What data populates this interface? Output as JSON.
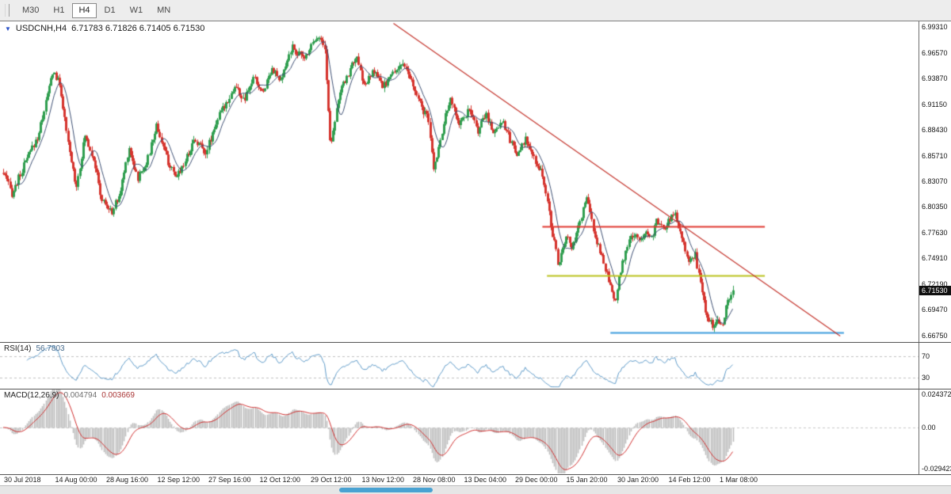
{
  "toolbar": {
    "timeframes": [
      "M30",
      "H1",
      "H4",
      "D1",
      "W1",
      "MN"
    ],
    "active": "H4"
  },
  "chart_data": {
    "type": "candlestick",
    "title": "USDCNH,H4",
    "legend": {
      "marker": "▼",
      "symbol": "USDCNH,H4",
      "ohlc": "6.71783 6.71826 6.71405 6.71530"
    },
    "current_price": "6.71530",
    "y_axis_labels": [
      "6.99310",
      "6.96570",
      "6.93870",
      "6.91150",
      "6.88430",
      "6.85710",
      "6.83070",
      "6.80350",
      "6.77630",
      "6.74910",
      "6.72190",
      "6.69470",
      "6.66750"
    ],
    "price_range": {
      "min": 6.6616,
      "max": 6.999
    },
    "candles": 430,
    "noise": 0.008,
    "wick": 0.0045,
    "data_right_fraction": 0.797,
    "ma_period": 9,
    "price_path": [
      [
        0.0,
        6.839
      ],
      [
        0.012,
        6.817
      ],
      [
        0.03,
        6.85
      ],
      [
        0.048,
        6.879
      ],
      [
        0.068,
        6.947
      ],
      [
        0.078,
        6.93
      ],
      [
        0.088,
        6.871
      ],
      [
        0.1,
        6.825
      ],
      [
        0.112,
        6.879
      ],
      [
        0.124,
        6.854
      ],
      [
        0.134,
        6.812
      ],
      [
        0.148,
        6.797
      ],
      [
        0.16,
        6.817
      ],
      [
        0.172,
        6.867
      ],
      [
        0.184,
        6.833
      ],
      [
        0.198,
        6.854
      ],
      [
        0.21,
        6.89
      ],
      [
        0.222,
        6.859
      ],
      [
        0.235,
        6.833
      ],
      [
        0.248,
        6.85
      ],
      [
        0.262,
        6.875
      ],
      [
        0.278,
        6.861
      ],
      [
        0.292,
        6.894
      ],
      [
        0.305,
        6.913
      ],
      [
        0.318,
        6.931
      ],
      [
        0.33,
        6.914
      ],
      [
        0.343,
        6.94
      ],
      [
        0.355,
        6.923
      ],
      [
        0.368,
        6.951
      ],
      [
        0.38,
        6.934
      ],
      [
        0.395,
        6.972
      ],
      [
        0.412,
        6.959
      ],
      [
        0.428,
        6.984
      ],
      [
        0.44,
        6.976
      ],
      [
        0.448,
        6.867
      ],
      [
        0.46,
        6.921
      ],
      [
        0.472,
        6.942
      ],
      [
        0.483,
        6.963
      ],
      [
        0.495,
        6.93
      ],
      [
        0.508,
        6.947
      ],
      [
        0.52,
        6.93
      ],
      [
        0.532,
        6.942
      ],
      [
        0.545,
        6.955
      ],
      [
        0.558,
        6.938
      ],
      [
        0.57,
        6.913
      ],
      [
        0.582,
        6.896
      ],
      [
        0.59,
        6.842
      ],
      [
        0.6,
        6.879
      ],
      [
        0.612,
        6.917
      ],
      [
        0.625,
        6.892
      ],
      [
        0.638,
        6.905
      ],
      [
        0.65,
        6.884
      ],
      [
        0.662,
        6.901
      ],
      [
        0.672,
        6.881
      ],
      [
        0.684,
        6.896
      ],
      [
        0.695,
        6.873
      ],
      [
        0.706,
        6.858
      ],
      [
        0.716,
        6.875
      ],
      [
        0.727,
        6.854
      ],
      [
        0.737,
        6.842
      ],
      [
        0.745,
        6.812
      ],
      [
        0.752,
        6.779
      ],
      [
        0.76,
        6.745
      ],
      [
        0.766,
        6.754
      ],
      [
        0.772,
        6.775
      ],
      [
        0.778,
        6.758
      ],
      [
        0.785,
        6.771
      ],
      [
        0.799,
        6.814
      ],
      [
        0.808,
        6.783
      ],
      [
        0.815,
        6.762
      ],
      [
        0.823,
        6.745
      ],
      [
        0.83,
        6.724
      ],
      [
        0.838,
        6.7
      ],
      [
        0.846,
        6.737
      ],
      [
        0.855,
        6.762
      ],
      [
        0.864,
        6.775
      ],
      [
        0.872,
        6.766
      ],
      [
        0.88,
        6.78
      ],
      [
        0.888,
        6.771
      ],
      [
        0.896,
        6.789
      ],
      [
        0.904,
        6.779
      ],
      [
        0.919,
        6.798
      ],
      [
        0.926,
        6.783
      ],
      [
        0.934,
        6.762
      ],
      [
        0.941,
        6.745
      ],
      [
        0.948,
        6.755
      ],
      [
        0.956,
        6.72
      ],
      [
        0.964,
        6.691
      ],
      [
        0.972,
        6.678
      ],
      [
        0.979,
        6.687
      ],
      [
        0.985,
        6.677
      ],
      [
        0.991,
        6.699
      ],
      [
        1.0,
        6.7153
      ]
    ],
    "overlays": {
      "trendline": {
        "color": "#c4342c",
        "points": [
          [
            0.428,
            6.997
          ],
          [
            0.914,
            6.667
          ]
        ]
      },
      "hlines": [
        {
          "price": 6.783,
          "x1": 0.59,
          "x2": 0.832,
          "color": "#e03a32"
        },
        {
          "price": 6.731,
          "x1": 0.595,
          "x2": 0.832,
          "color": "#bcc421"
        },
        {
          "price": 6.671,
          "x1": 0.664,
          "x2": 0.918,
          "color": "#3f9ede"
        }
      ]
    },
    "colors": {
      "up": "#2f9e4f",
      "down": "#d5342e",
      "ma": "#3d4f73",
      "macd_hist": "#bdbdbd",
      "macd_signal": "#cf2e2e"
    },
    "rsi": {
      "label": "RSI(14)",
      "value": "56.7803",
      "period": 14,
      "levels": [
        70,
        30
      ],
      "range": [
        10,
        95
      ],
      "color": "#5e9ac8"
    },
    "macd": {
      "label": "MACD(12,26,9)",
      "value_macd": "0.004794",
      "value_signal": "0.003669",
      "fast": 12,
      "slow": 26,
      "signal": 9,
      "axis_labels": [
        "0.024372",
        "0.00",
        "-0.029423"
      ],
      "range": [
        -0.0295,
        0.0244
      ]
    },
    "x_axis_labels": [
      "30 Jul 2018",
      "14 Aug 00:00",
      "28 Aug 16:00",
      "12 Sep 12:00",
      "27 Sep 16:00",
      "12 Oct 12:00",
      "29 Oct 12:00",
      "13 Nov 12:00",
      "28 Nov 08:00",
      "13 Dec 04:00",
      "29 Dec 00:00",
      "15 Jan 20:00",
      "30 Jan 20:00",
      "14 Feb 12:00",
      "1 Mar 08:00"
    ]
  }
}
